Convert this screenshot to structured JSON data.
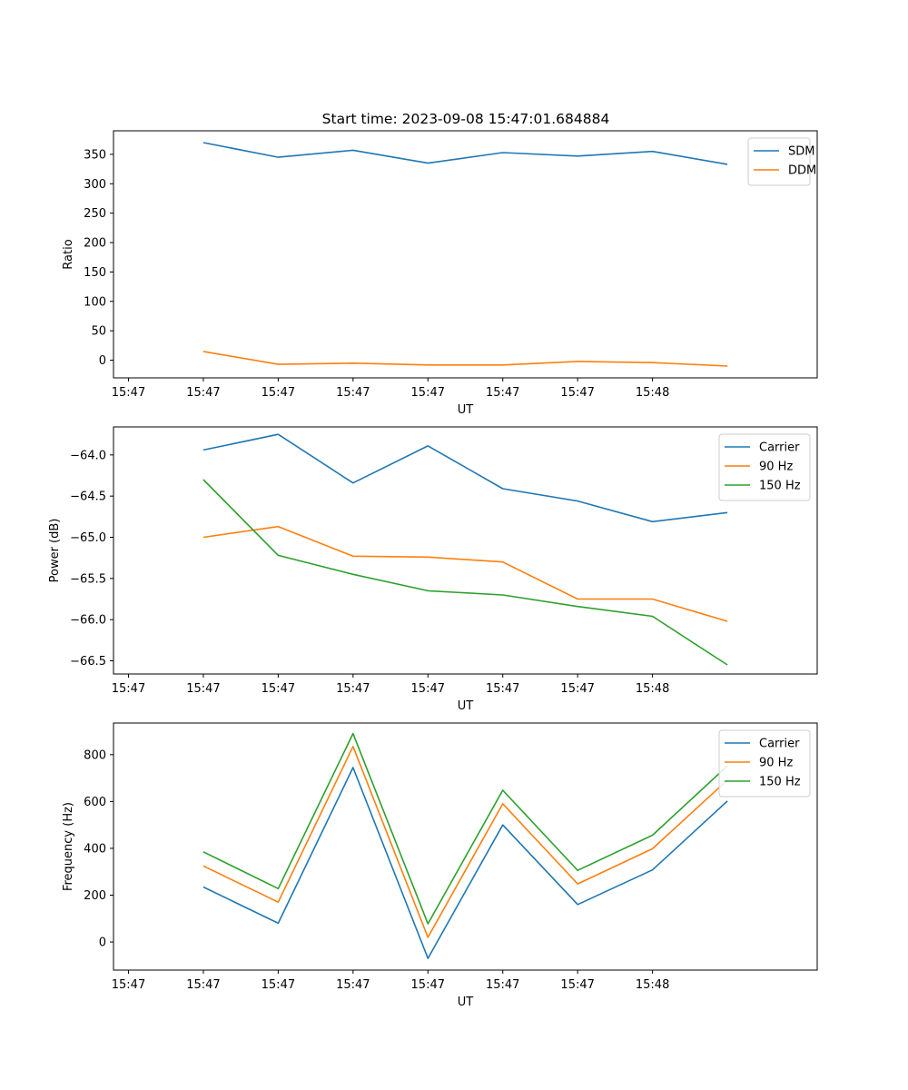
{
  "figure": {
    "title": "Start time: 2023-09-08 15:47:01.684884"
  },
  "chart_data": [
    {
      "type": "line",
      "xlabel": "UT",
      "ylabel": "Ratio",
      "x_tick_labels": [
        "15:47",
        "15:47",
        "15:47",
        "15:47",
        "15:47",
        "15:47",
        "15:47"
      ],
      "x_last_tick_label": "15:48",
      "x": [
        1,
        2,
        3,
        4,
        5,
        6,
        7,
        8
      ],
      "xlim": [
        -0.2,
        9.2
      ],
      "ylim": [
        -30,
        390
      ],
      "yticks": [
        0,
        50,
        100,
        150,
        200,
        250,
        300,
        350
      ],
      "ytick_labels": [
        "0",
        "50",
        "100",
        "150",
        "200",
        "250",
        "300",
        "350"
      ],
      "legend": "top-right",
      "series": [
        {
          "name": "SDM",
          "color": "#1f77b4",
          "values": [
            370,
            345,
            357,
            335,
            353,
            347,
            355,
            333
          ]
        },
        {
          "name": "DDM",
          "color": "#ff7f0e",
          "values": [
            15,
            -7,
            -5,
            -8,
            -8,
            -2,
            -4,
            -10
          ]
        }
      ]
    },
    {
      "type": "line",
      "xlabel": "UT",
      "ylabel": "Power (dB)",
      "x_tick_labels": [
        "15:47",
        "15:47",
        "15:47",
        "15:47",
        "15:47",
        "15:47",
        "15:47"
      ],
      "x_last_tick_label": "15:48",
      "x": [
        1,
        2,
        3,
        4,
        5,
        6,
        7,
        8
      ],
      "xlim": [
        -0.2,
        9.2
      ],
      "ylim": [
        -66.66,
        -63.66
      ],
      "yticks": [
        -66.5,
        -66.0,
        -65.5,
        -65.0,
        -64.5,
        -64.0
      ],
      "ytick_labels": [
        "−66.5",
        "−66.0",
        "−65.5",
        "−65.0",
        "−64.5",
        "−64.0"
      ],
      "legend": "top-right",
      "series": [
        {
          "name": "Carrier",
          "color": "#1f77b4",
          "values": [
            -63.94,
            -63.75,
            -64.34,
            -63.89,
            -64.41,
            -64.56,
            -64.81,
            -64.7
          ]
        },
        {
          "name": "90 Hz",
          "color": "#ff7f0e",
          "values": [
            -65.0,
            -64.87,
            -65.23,
            -65.24,
            -65.3,
            -65.75,
            -65.75,
            -66.02
          ]
        },
        {
          "name": "150 Hz",
          "color": "#2ca02c",
          "values": [
            -64.3,
            -65.22,
            -65.45,
            -65.65,
            -65.7,
            -65.84,
            -65.96,
            -66.55
          ]
        }
      ]
    },
    {
      "type": "line",
      "xlabel": "UT",
      "ylabel": "Frequency (Hz)",
      "x_tick_labels": [
        "15:47",
        "15:47",
        "15:47",
        "15:47",
        "15:47",
        "15:47",
        "15:47"
      ],
      "x_last_tick_label": "15:48",
      "x": [
        1,
        2,
        3,
        4,
        5,
        6,
        7,
        8
      ],
      "xlim": [
        -0.2,
        9.2
      ],
      "ylim": [
        -120,
        935
      ],
      "yticks": [
        0,
        200,
        400,
        600,
        800
      ],
      "ytick_labels": [
        "0",
        "200",
        "400",
        "600",
        "800"
      ],
      "legend": "top-right",
      "series": [
        {
          "name": "Carrier",
          "color": "#1f77b4",
          "values": [
            235,
            80,
            745,
            -70,
            500,
            160,
            308,
            602
          ]
        },
        {
          "name": "90 Hz",
          "color": "#ff7f0e",
          "values": [
            325,
            170,
            835,
            20,
            590,
            248,
            398,
            692
          ]
        },
        {
          "name": "150 Hz",
          "color": "#2ca02c",
          "values": [
            385,
            228,
            890,
            78,
            648,
            306,
            456,
            752
          ]
        }
      ]
    }
  ]
}
